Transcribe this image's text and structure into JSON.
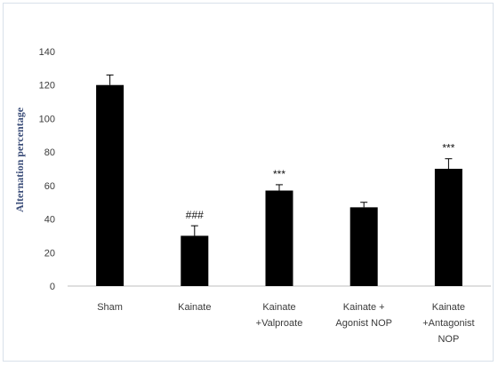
{
  "chart_data": {
    "type": "bar",
    "title": "",
    "xlabel": "",
    "ylabel": "Alternation percentage",
    "ylim": [
      0,
      140
    ],
    "yticks": [
      0,
      20,
      40,
      60,
      80,
      100,
      120,
      140
    ],
    "grid": false,
    "categories": [
      [
        "Sham"
      ],
      [
        "Kainate"
      ],
      [
        "Kainate",
        "+Valproate"
      ],
      [
        "Kainate +",
        "Agonist NOP"
      ],
      [
        "Kainate",
        "+Antagonist",
        "NOP"
      ]
    ],
    "values": [
      120,
      30,
      57,
      47,
      70
    ],
    "errors": [
      6,
      6,
      3.5,
      3,
      6
    ],
    "annotations": [
      "",
      "###",
      "***",
      "",
      "***"
    ],
    "bar_color": "#000000",
    "axis_color": "#bfbfbf"
  }
}
